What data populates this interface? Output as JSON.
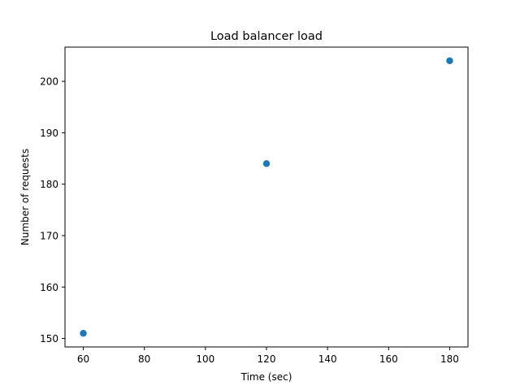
{
  "chart_data": {
    "type": "scatter",
    "title": "Load balancer load",
    "xlabel": "Time (sec)",
    "ylabel": "Number of requests",
    "x": [
      60,
      120,
      180
    ],
    "y": [
      151,
      184,
      204
    ],
    "xlim": [
      54,
      186
    ],
    "ylim": [
      148.35,
      206.65
    ],
    "xticks": [
      60,
      80,
      100,
      120,
      140,
      160,
      180
    ],
    "yticks": [
      150,
      160,
      170,
      180,
      190,
      200
    ],
    "grid": false,
    "legend": "none",
    "series": [
      {
        "x": [
          60,
          120,
          180
        ],
        "y": [
          151,
          184,
          204
        ],
        "color": "#1f77b4",
        "marker": "circle"
      }
    ]
  }
}
